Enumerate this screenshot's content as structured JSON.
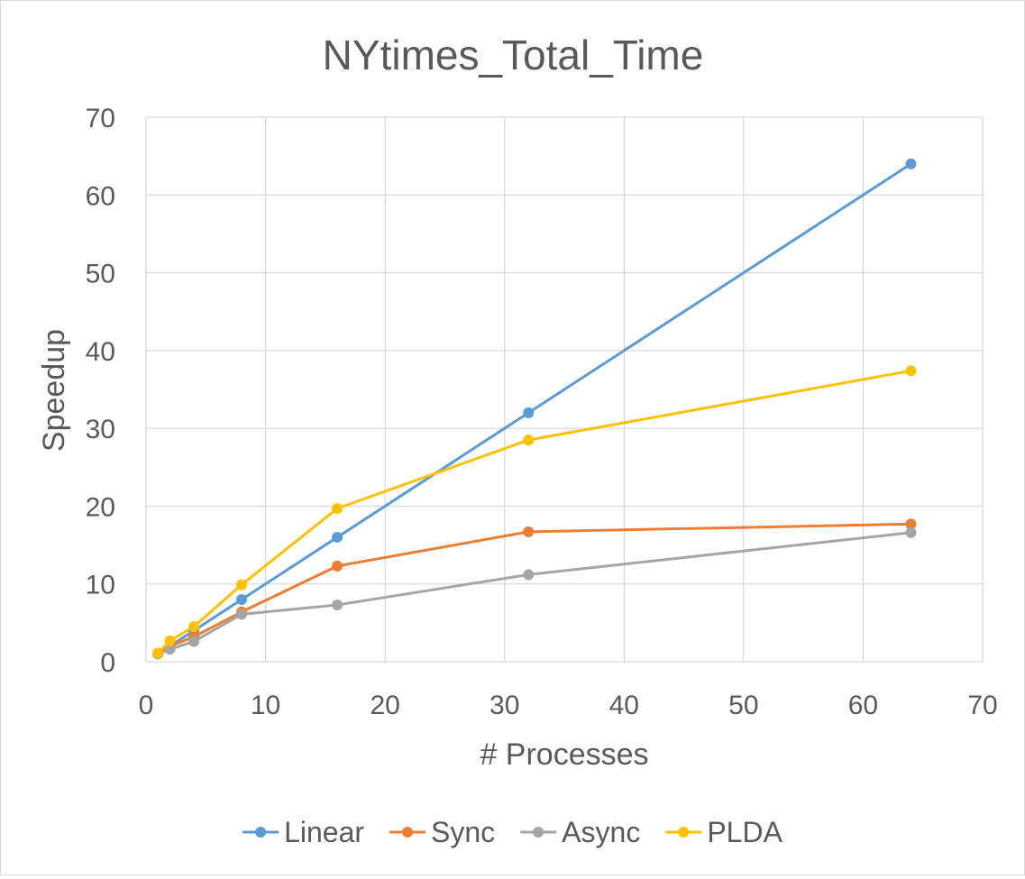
{
  "chart_data": {
    "type": "scatter",
    "title": "NYtimes_Total_Time",
    "xlabel": "# Processes",
    "ylabel": "Speedup",
    "xlim": [
      0,
      70
    ],
    "ylim": [
      0,
      70
    ],
    "xticks": [
      0,
      10,
      20,
      30,
      40,
      50,
      60,
      70
    ],
    "yticks": [
      0,
      10,
      20,
      30,
      40,
      50,
      60,
      70
    ],
    "grid": true,
    "legend_position": "bottom",
    "markers": true,
    "lines": "straight",
    "series": [
      {
        "name": "Linear",
        "color": "#5b9bd5",
        "x": [
          1,
          2,
          4,
          8,
          16,
          32,
          64
        ],
        "y": [
          1,
          2,
          4,
          8,
          16,
          32,
          64
        ]
      },
      {
        "name": "Sync",
        "color": "#ed7d31",
        "x": [
          1,
          2,
          4,
          8,
          16,
          32,
          64
        ],
        "y": [
          1,
          2,
          3.2,
          6.4,
          12.3,
          16.7,
          17.7
        ]
      },
      {
        "name": "Async",
        "color": "#a5a5a5",
        "x": [
          1,
          2,
          4,
          8,
          16,
          32,
          64
        ],
        "y": [
          1,
          1.6,
          2.6,
          6.1,
          7.3,
          11.2,
          16.6
        ]
      },
      {
        "name": "PLDA",
        "color": "#ffc000",
        "x": [
          1,
          2,
          4,
          8,
          16,
          32,
          64
        ],
        "y": [
          1.1,
          2.7,
          4.5,
          9.9,
          19.7,
          28.5,
          37.4
        ]
      }
    ]
  }
}
